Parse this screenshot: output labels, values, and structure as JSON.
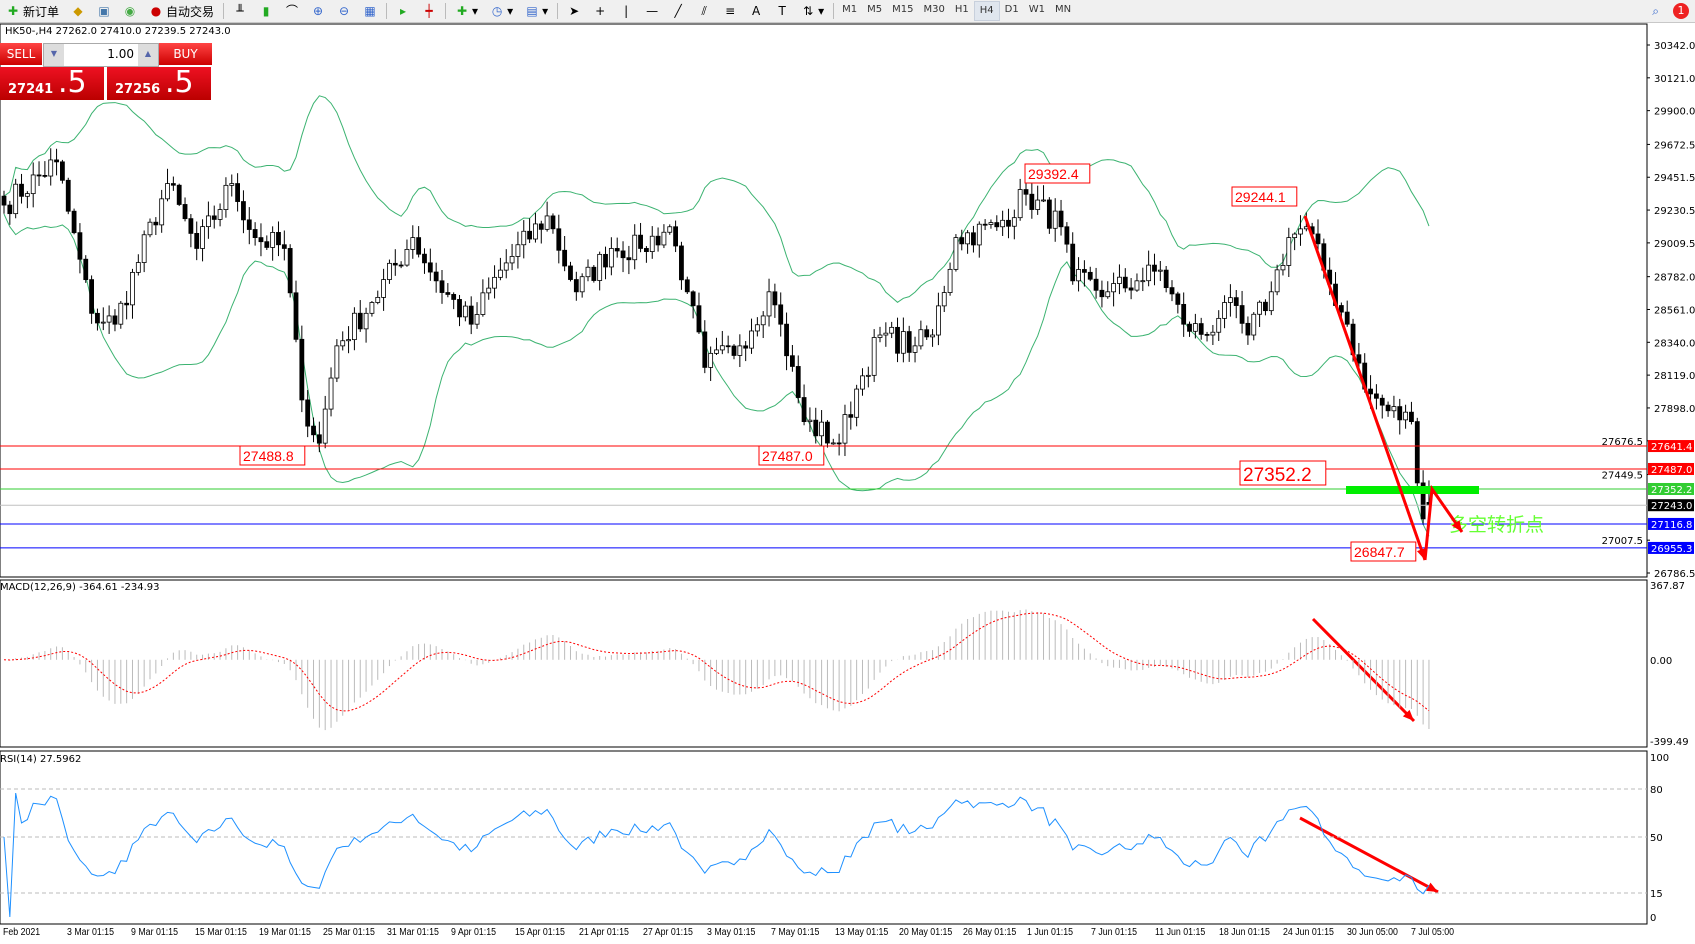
{
  "toolbar": {
    "new_order": "新订单",
    "auto_trading": "自动交易",
    "timeframes": [
      "M1",
      "M5",
      "M15",
      "M30",
      "H1",
      "H4",
      "D1",
      "W1",
      "MN"
    ],
    "active_timeframe": "H4",
    "notification_count": "1"
  },
  "chart_info": "HK50-,H4  27262.0 27410.0 27239.5 27243.0",
  "trade_panel": {
    "sell_label": "SELL",
    "buy_label": "BUY",
    "lot": "1.00",
    "sell_price_main": "27241",
    "sell_price_big": ".5",
    "buy_price_main": "27256",
    "buy_price_big": ".5"
  },
  "price_axis": {
    "ticks": [
      "30342.0",
      "30121.0",
      "29900.0",
      "29672.5",
      "29451.5",
      "29230.5",
      "29009.5",
      "28782.0",
      "28561.0",
      "28340.0",
      "28119.0",
      "27898.0",
      "27676.5",
      "27449.5",
      "27007.5",
      "26786.5"
    ],
    "range": [
      26786.5,
      30342.0
    ]
  },
  "hlines": [
    {
      "price": "27641.4",
      "color": "#ff0000",
      "tag_bg": "#ff0000"
    },
    {
      "price": "27487.0",
      "color": "#ff0000",
      "tag_bg": "#ff0000"
    },
    {
      "price": "27352.2",
      "color": "#32cd32",
      "tag_bg": "#32cd32"
    },
    {
      "price": "27243.0",
      "color": "#c0c0c0",
      "tag_bg": "#000000"
    },
    {
      "price": "27116.8",
      "color": "#0000ff",
      "tag_bg": "#0000ff"
    },
    {
      "price": "26955.3",
      "color": "#0000ff",
      "tag_bg": "#0000ff"
    }
  ],
  "price_labels": [
    "29392.4",
    "29244.1",
    "27488.8",
    "27487.0",
    "27352.2",
    "26847.7"
  ],
  "annotation_text": "多空转折点",
  "chart_data": {
    "type": "candlestick",
    "symbol": "HK50-",
    "timeframe": "H4",
    "close_keypoints": [
      [
        0,
        29264
      ],
      [
        9,
        29555
      ],
      [
        15,
        28535
      ],
      [
        19,
        28462
      ],
      [
        28,
        29409
      ],
      [
        33,
        28972
      ],
      [
        39,
        29409
      ],
      [
        43,
        29045
      ],
      [
        48,
        28972
      ],
      [
        51,
        27952
      ],
      [
        54,
        27661
      ],
      [
        57,
        28316
      ],
      [
        63,
        28608
      ],
      [
        70,
        29045
      ],
      [
        74,
        28754
      ],
      [
        80,
        28462
      ],
      [
        85,
        28826
      ],
      [
        93,
        29191
      ],
      [
        98,
        28680
      ],
      [
        104,
        28972
      ],
      [
        109,
        28972
      ],
      [
        114,
        29118
      ],
      [
        117,
        28680
      ],
      [
        120,
        28171
      ],
      [
        126,
        28316
      ],
      [
        131,
        28680
      ],
      [
        133,
        28462
      ],
      [
        137,
        27806
      ],
      [
        143,
        27661
      ],
      [
        146,
        28025
      ],
      [
        150,
        28389
      ],
      [
        156,
        28316
      ],
      [
        159,
        28389
      ],
      [
        163,
        29045
      ],
      [
        170,
        29118
      ],
      [
        175,
        29337
      ],
      [
        181,
        29118
      ],
      [
        183,
        28754
      ],
      [
        189,
        28680
      ],
      [
        194,
        28754
      ],
      [
        198,
        28826
      ],
      [
        202,
        28462
      ],
      [
        206,
        28389
      ],
      [
        209,
        28608
      ],
      [
        213,
        28389
      ],
      [
        217,
        28680
      ],
      [
        220,
        29045
      ],
      [
        223,
        29118
      ],
      [
        226,
        28826
      ],
      [
        230,
        28462
      ],
      [
        233,
        28025
      ],
      [
        237,
        27879
      ],
      [
        241,
        27806
      ],
      [
        243,
        27151
      ],
      [
        244,
        27243
      ]
    ],
    "last_bar": {
      "open": 27262.0,
      "high": 27410.0,
      "low": 27239.5,
      "close": 27243.0
    },
    "overlays": [
      "Bollinger Bands"
    ],
    "time_labels": [
      "Feb 2021",
      "3 Mar 01:15",
      "9 Mar 01:15",
      "15 Mar 01:15",
      "19 Mar 01:15",
      "25 Mar 01:15",
      "31 Mar 01:15",
      "9 Apr 01:15",
      "15 Apr 01:15",
      "21 Apr 01:15",
      "27 Apr 01:15",
      "3 May 01:15",
      "7 May 01:15",
      "13 May 01:15",
      "20 May 01:15",
      "26 May 01:15",
      "1 Jun 01:15",
      "7 Jun 01:15",
      "11 Jun 01:15",
      "18 Jun 01:15",
      "24 Jun 01:15",
      "30 Jun 05:00",
      "7 Jul 05:00"
    ]
  },
  "macd": {
    "label": "MACD(12,26,9) -364.61 -234.93",
    "ticks": [
      "367.87",
      "0.00",
      "-399.49"
    ],
    "range": [
      -399.49,
      367.87
    ]
  },
  "rsi": {
    "label": "RSI(14) 27.5962",
    "ticks": [
      "100",
      "80",
      "50",
      "15",
      "0"
    ],
    "levels": [
      80,
      50,
      15
    ]
  }
}
